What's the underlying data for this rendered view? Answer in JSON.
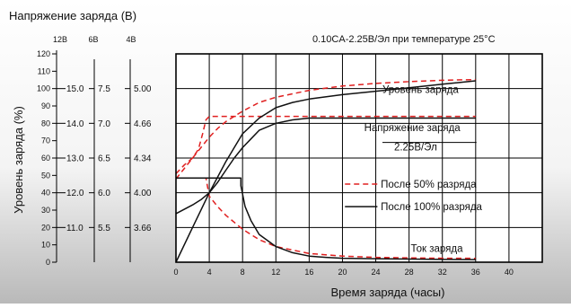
{
  "chart_data": {
    "type": "line",
    "title": "Напряжение заряда (В)",
    "condition": "0.10CA-2.25В/Эл при температуре 25°С",
    "xlabel": "Время заряда (часы)",
    "ylabel": "Уровень заряда (%)",
    "xlim": [
      0,
      44
    ],
    "x_ticks": [
      0,
      4,
      8,
      12,
      16,
      20,
      24,
      28,
      32,
      36,
      40
    ],
    "ylim": [
      0,
      120
    ],
    "y_ticks": [
      0,
      10,
      20,
      30,
      40,
      50,
      60,
      70,
      80,
      90,
      100,
      110,
      120
    ],
    "grid": true,
    "voltage_scales": [
      {
        "header": "12В",
        "labels": [
          {
            "label": "11.0",
            "y": 20
          },
          {
            "label": "12.0",
            "y": 40
          },
          {
            "label": "13.0",
            "y": 60
          },
          {
            "label": "14.0",
            "y": 80
          },
          {
            "label": "15.0",
            "y": 100
          }
        ]
      },
      {
        "header": "6В",
        "labels": [
          {
            "label": "5.5",
            "y": 20
          },
          {
            "label": "6.0",
            "y": 40
          },
          {
            "label": "6.5",
            "y": 60
          },
          {
            "label": "7.0",
            "y": 80
          },
          {
            "label": "7.5",
            "y": 100
          }
        ]
      },
      {
        "header": "4В",
        "labels": [
          {
            "label": "3.66",
            "y": 20
          },
          {
            "label": "4.00",
            "y": 40
          },
          {
            "label": "4.34",
            "y": 60
          },
          {
            "label": "4.66",
            "y": 80
          },
          {
            "label": "5.00",
            "y": 100
          }
        ]
      }
    ],
    "legend": [
      {
        "name": "После 50% разряда",
        "style": "dashed",
        "color": "#e02020"
      },
      {
        "name": "После 100% разряда",
        "style": "solid",
        "color": "#111111"
      }
    ],
    "annotations": [
      {
        "text": "Уровень заряда",
        "x": 24.8,
        "y": 97.5
      },
      {
        "text": "Напряжение заряда",
        "x": 22.6,
        "y": 75.5
      },
      {
        "text": "2.25В/Эл",
        "x": 26.2,
        "y": 64.5
      },
      {
        "text": "Ток заряда",
        "x": 28.2,
        "y": 6
      }
    ],
    "series": [
      {
        "name": "После 50% разряда",
        "curve": "Уровень заряда",
        "style": "dashed",
        "color": "#e02020",
        "x": [
          0,
          1,
          2,
          3,
          4,
          5,
          6,
          7,
          8,
          10,
          12,
          14,
          16,
          20,
          24,
          28,
          32,
          36
        ],
        "y": [
          48,
          54,
          60,
          66,
          72,
          77,
          81,
          84,
          87,
          92,
          95,
          97,
          99,
          101.5,
          103,
          104,
          104.8,
          105.2
        ]
      },
      {
        "name": "После 50% разряда",
        "curve": "Напряжение заряда",
        "style": "dashed",
        "color": "#e02020",
        "x": [
          0,
          1,
          2,
          2.7,
          3.2,
          3.6,
          4,
          8,
          36
        ],
        "y": [
          51,
          56,
          60,
          65,
          74,
          82,
          84,
          84,
          84
        ]
      },
      {
        "name": "После 50% разряда",
        "curve": "Ток заряда",
        "style": "dashed",
        "color": "#e02020",
        "x": [
          0,
          1,
          2,
          3,
          3.6,
          4,
          5,
          6,
          8,
          10,
          12,
          16,
          20,
          24,
          28,
          32,
          36
        ],
        "y": [
          48.5,
          48.5,
          48.5,
          48.5,
          48.5,
          38,
          32,
          27,
          19,
          13,
          9,
          5,
          3.5,
          2.8,
          2.5,
          2.3,
          2.2
        ]
      },
      {
        "name": "После 100% разряда",
        "curve": "Уровень заряда",
        "style": "solid",
        "color": "#111111",
        "x": [
          0,
          2,
          4,
          6,
          7,
          8,
          10,
          12,
          14,
          16,
          20,
          24,
          28,
          32,
          36
        ],
        "y": [
          0,
          20,
          40,
          58,
          66,
          74,
          83,
          89,
          92,
          94,
          96.5,
          98.5,
          100.5,
          102.5,
          104.5
        ]
      },
      {
        "name": "После 100% разряда",
        "curve": "Напряжение заряда",
        "style": "solid",
        "color": "#111111",
        "x": [
          0,
          2,
          3,
          4,
          5,
          6,
          7,
          8,
          9,
          10,
          12,
          14,
          16,
          36
        ],
        "y": [
          28,
          33,
          36,
          40,
          46,
          53,
          60,
          66,
          71,
          76,
          80,
          82,
          83,
          83
        ]
      },
      {
        "name": "После 100% разряда",
        "curve": "Ток заряда",
        "style": "solid",
        "color": "#111111",
        "x": [
          0,
          7.8,
          7.8,
          8.3,
          9,
          10,
          12,
          14,
          16,
          18,
          20,
          24,
          28,
          32,
          36
        ],
        "y": [
          48.5,
          48.5,
          44,
          32,
          24,
          16,
          9,
          5.5,
          3.5,
          2.8,
          2.3,
          2,
          1.8,
          1.6,
          1.5
        ]
      }
    ]
  }
}
